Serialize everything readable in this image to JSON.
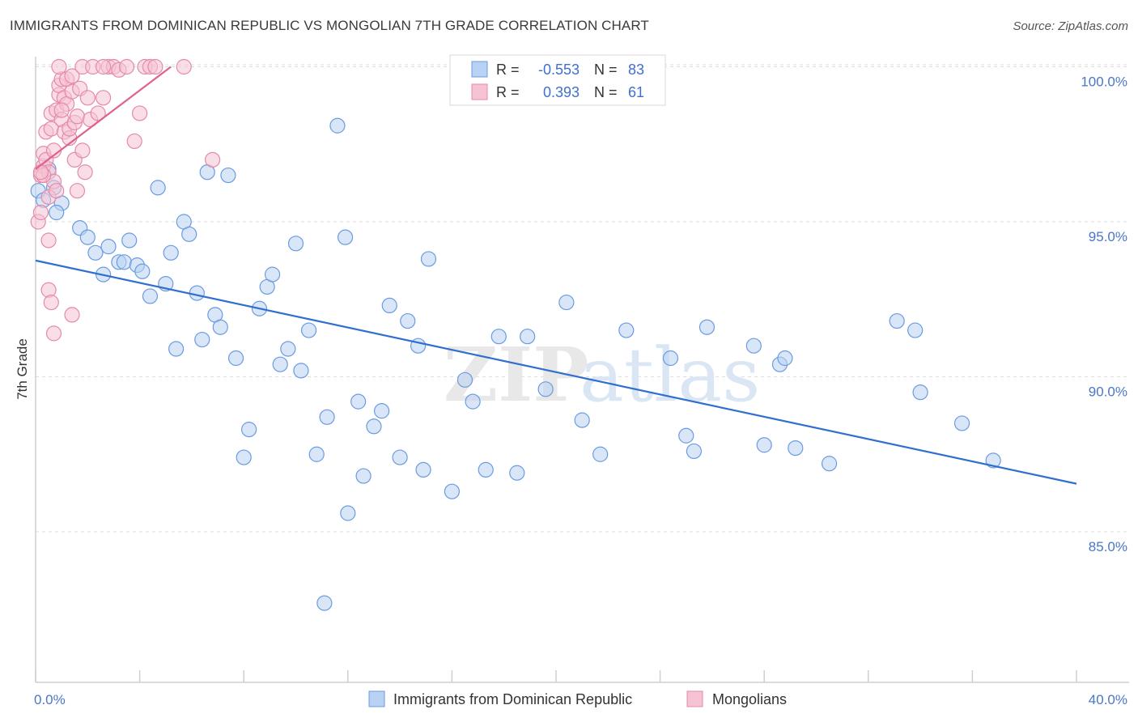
{
  "title": "IMMIGRANTS FROM DOMINICAN REPUBLIC VS MONGOLIAN 7TH GRADE CORRELATION CHART",
  "source": "Source: ZipAtlas.com",
  "watermark": {
    "part1": "ZIP",
    "part2": "atlas"
  },
  "colors": {
    "blue": "#6a9be0",
    "blue_fill": "#b9d1f3",
    "blue_line": "#2f6fd0",
    "pink": "#e48aa8",
    "pink_fill": "#f6c3d3",
    "pink_line": "#e0608e",
    "tick_text": "#4a76c8",
    "grid": "#dddddd"
  },
  "stats": [
    {
      "label_r": "R =",
      "r": "-0.553",
      "label_n": "N =",
      "n": "83",
      "series": "blue"
    },
    {
      "label_r": "R =",
      "r": "0.393",
      "label_n": "N =",
      "n": "61",
      "series": "pink"
    }
  ],
  "chart_data": {
    "type": "scatter",
    "title": "IMMIGRANTS FROM DOMINICAN REPUBLIC VS MONGOLIAN 7TH GRADE CORRELATION CHART",
    "xlabel": "",
    "ylabel": "7th Grade",
    "xlim": [
      0,
      40
    ],
    "ylim": [
      80.5,
      101.0
    ],
    "x_tick_labels": [
      "0.0%",
      "40.0%"
    ],
    "y_ticks": [
      85,
      90,
      95,
      100
    ],
    "y_tick_labels": [
      "85.0%",
      "90.0%",
      "95.0%",
      "100.0%"
    ],
    "grid": true,
    "legend_position": "bottom-center",
    "series": [
      {
        "name": "Immigrants from Dominican Republic",
        "color": "#6a9be0",
        "trend": {
          "x": [
            0.0,
            40.0
          ],
          "y": [
            93.75,
            86.55
          ]
        },
        "points": [
          [
            0.1,
            96.0
          ],
          [
            0.3,
            95.7
          ],
          [
            0.5,
            96.7
          ],
          [
            0.7,
            96.1
          ],
          [
            1.0,
            95.6
          ],
          [
            0.8,
            95.3
          ],
          [
            1.7,
            94.8
          ],
          [
            2.0,
            94.5
          ],
          [
            2.3,
            94.0
          ],
          [
            2.6,
            93.3
          ],
          [
            2.8,
            94.2
          ],
          [
            3.2,
            93.7
          ],
          [
            3.4,
            93.7
          ],
          [
            3.6,
            94.4
          ],
          [
            3.9,
            93.6
          ],
          [
            4.1,
            93.4
          ],
          [
            4.4,
            92.6
          ],
          [
            4.7,
            96.1
          ],
          [
            5.0,
            93.0
          ],
          [
            5.2,
            94.0
          ],
          [
            5.4,
            90.9
          ],
          [
            5.7,
            95.0
          ],
          [
            5.9,
            94.6
          ],
          [
            6.2,
            92.7
          ],
          [
            6.4,
            91.2
          ],
          [
            6.6,
            96.6
          ],
          [
            6.9,
            92.0
          ],
          [
            7.1,
            91.6
          ],
          [
            7.4,
            96.5
          ],
          [
            7.7,
            90.6
          ],
          [
            8.0,
            87.4
          ],
          [
            8.2,
            88.3
          ],
          [
            8.6,
            92.2
          ],
          [
            8.9,
            92.9
          ],
          [
            9.1,
            93.3
          ],
          [
            9.4,
            90.4
          ],
          [
            9.7,
            90.9
          ],
          [
            10.0,
            94.3
          ],
          [
            10.2,
            90.2
          ],
          [
            10.5,
            91.5
          ],
          [
            10.8,
            87.5
          ],
          [
            11.2,
            88.7
          ],
          [
            11.6,
            98.1
          ],
          [
            11.9,
            94.5
          ],
          [
            11.1,
            82.7
          ],
          [
            12.0,
            85.6
          ],
          [
            12.4,
            89.2
          ],
          [
            12.6,
            86.8
          ],
          [
            13.0,
            88.4
          ],
          [
            13.3,
            88.9
          ],
          [
            13.6,
            92.3
          ],
          [
            14.0,
            87.4
          ],
          [
            14.3,
            91.8
          ],
          [
            14.7,
            91.0
          ],
          [
            14.9,
            87.0
          ],
          [
            15.1,
            93.8
          ],
          [
            16.0,
            86.3
          ],
          [
            16.5,
            89.9
          ],
          [
            16.8,
            89.2
          ],
          [
            17.3,
            87.0
          ],
          [
            17.8,
            91.3
          ],
          [
            18.5,
            86.9
          ],
          [
            18.9,
            91.3
          ],
          [
            19.6,
            89.6
          ],
          [
            20.4,
            92.4
          ],
          [
            21.0,
            88.6
          ],
          [
            21.7,
            87.5
          ],
          [
            22.7,
            91.5
          ],
          [
            24.4,
            90.6
          ],
          [
            25.0,
            88.1
          ],
          [
            25.3,
            87.6
          ],
          [
            25.8,
            91.6
          ],
          [
            27.6,
            91.0
          ],
          [
            28.0,
            87.8
          ],
          [
            28.6,
            90.4
          ],
          [
            28.8,
            90.6
          ],
          [
            29.2,
            87.7
          ],
          [
            30.5,
            87.2
          ],
          [
            33.1,
            91.8
          ],
          [
            33.8,
            91.5
          ],
          [
            34.0,
            89.5
          ],
          [
            35.6,
            88.5
          ],
          [
            36.8,
            87.3
          ]
        ]
      },
      {
        "name": "Mongolians",
        "color": "#e48aa8",
        "trend": {
          "x": [
            0.0,
            5.2
          ],
          "y": [
            96.7,
            100.0
          ]
        },
        "points": [
          [
            0.1,
            95.0
          ],
          [
            0.2,
            95.3
          ],
          [
            0.2,
            96.5
          ],
          [
            0.3,
            96.8
          ],
          [
            0.3,
            97.2
          ],
          [
            0.4,
            97.0
          ],
          [
            0.4,
            97.9
          ],
          [
            0.5,
            95.8
          ],
          [
            0.5,
            96.6
          ],
          [
            0.6,
            98.0
          ],
          [
            0.6,
            98.5
          ],
          [
            0.7,
            96.3
          ],
          [
            0.7,
            97.3
          ],
          [
            0.8,
            96.0
          ],
          [
            0.8,
            98.6
          ],
          [
            0.9,
            99.1
          ],
          [
            0.9,
            99.4
          ],
          [
            1.0,
            98.3
          ],
          [
            1.0,
            99.6
          ],
          [
            1.1,
            97.9
          ],
          [
            1.1,
            99.0
          ],
          [
            1.2,
            98.8
          ],
          [
            1.2,
            99.6
          ],
          [
            1.3,
            97.7
          ],
          [
            1.3,
            98.0
          ],
          [
            1.4,
            99.2
          ],
          [
            1.4,
            99.7
          ],
          [
            1.5,
            98.2
          ],
          [
            1.5,
            97.0
          ],
          [
            1.6,
            98.4
          ],
          [
            1.7,
            99.3
          ],
          [
            1.8,
            100.0
          ],
          [
            1.8,
            97.3
          ],
          [
            1.9,
            96.6
          ],
          [
            2.0,
            99.0
          ],
          [
            2.1,
            98.3
          ],
          [
            2.2,
            100.0
          ],
          [
            2.4,
            98.5
          ],
          [
            2.6,
            99.0
          ],
          [
            2.8,
            100.0
          ],
          [
            3.0,
            100.0
          ],
          [
            3.2,
            99.9
          ],
          [
            3.5,
            100.0
          ],
          [
            3.8,
            97.6
          ],
          [
            4.0,
            98.5
          ],
          [
            4.2,
            100.0
          ],
          [
            4.4,
            100.0
          ],
          [
            4.6,
            100.0
          ],
          [
            5.7,
            100.0
          ],
          [
            6.8,
            97.0
          ],
          [
            0.5,
            92.8
          ],
          [
            0.6,
            92.4
          ],
          [
            0.7,
            91.4
          ],
          [
            0.5,
            94.4
          ],
          [
            1.4,
            92.0
          ],
          [
            0.9,
            100.0
          ],
          [
            1.0,
            98.6
          ],
          [
            0.3,
            96.5
          ],
          [
            0.2,
            96.6
          ],
          [
            1.6,
            96.0
          ],
          [
            2.6,
            100.0
          ]
        ]
      }
    ]
  }
}
